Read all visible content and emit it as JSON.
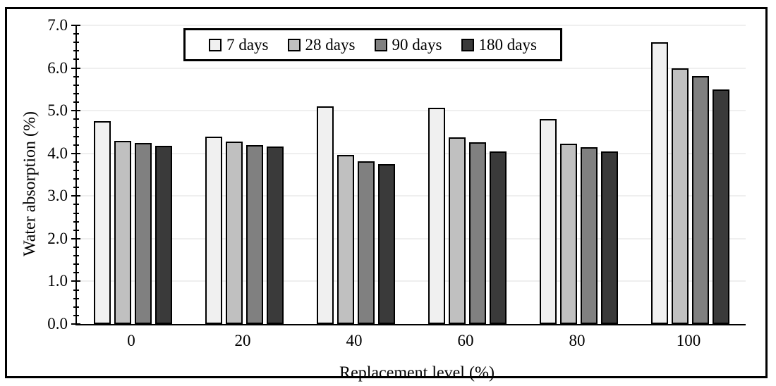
{
  "chart_data": {
    "type": "bar",
    "title": "",
    "xlabel": "Replacement level (%)",
    "ylabel": "Water absorption (%)",
    "categories": [
      "0",
      "20",
      "40",
      "60",
      "80",
      "100"
    ],
    "series": [
      {
        "name": "7 days",
        "color": "#f0f0f0",
        "values": [
          4.75,
          4.4,
          5.1,
          5.07,
          4.81,
          6.6
        ]
      },
      {
        "name": "28 days",
        "color": "#c0c0c0",
        "values": [
          4.3,
          4.28,
          3.97,
          4.37,
          4.23,
          6.0
        ]
      },
      {
        "name": "90 days",
        "color": "#808080",
        "values": [
          4.24,
          4.2,
          3.82,
          4.26,
          4.15,
          5.81
        ]
      },
      {
        "name": "180 days",
        "color": "#3a3a3a",
        "values": [
          4.17,
          4.16,
          3.75,
          4.05,
          4.05,
          5.5
        ]
      }
    ],
    "ylim": [
      0,
      7
    ],
    "ytick_step": 1,
    "ytick_minor_step": 0.2,
    "ytick_decimals": 1,
    "grid": "horizontal-major",
    "gridline_color": "#efefef",
    "axis_color": "#000000",
    "bar_outline_color": "#000000",
    "legend_position": "top-center",
    "background_color": "#ffffff",
    "frame_border_color": "#000000"
  }
}
